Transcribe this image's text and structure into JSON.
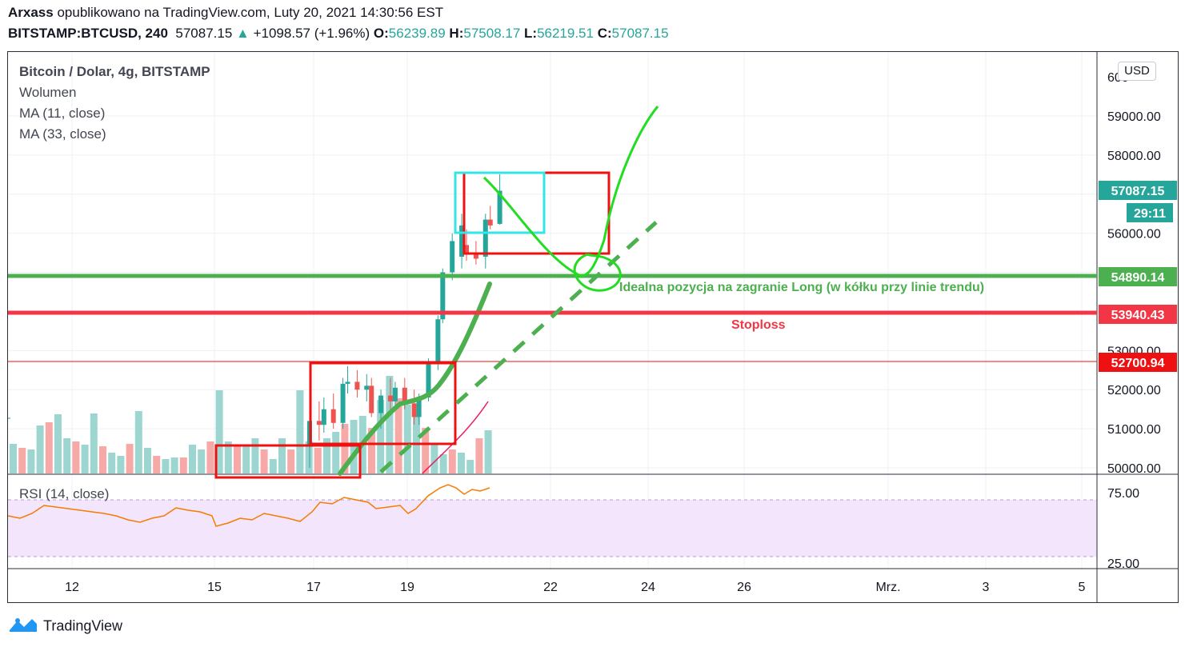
{
  "header": {
    "author": "Arxass",
    "published_text": "opublikowano na TradingView.com, Luty 20, 2021 14:30:56 EST",
    "symbol": "BITSTAMP:BTCUSD, 240",
    "price": "57087.15",
    "change": "+1098.57 (+1.96%)",
    "o_label": "O:",
    "o_value": "56239.89",
    "h_label": "H:",
    "h_value": "57508.17",
    "l_label": "L:",
    "l_value": "56219.51",
    "c_label": "C:",
    "c_value": "57087.15"
  },
  "legend": {
    "title": "Bitcoin / Dolar, 4g, BITSTAMP",
    "volume": "Wolumen",
    "ma11": "MA (11, close)",
    "ma33": "MA (33, close)",
    "rsi": "RSI (14, close)"
  },
  "currency_button": "USD",
  "footer": {
    "brand": "TradingView"
  },
  "colors": {
    "up": "#26a69a",
    "down": "#ef5350",
    "support": "#4caf50",
    "stoploss": "#f23645",
    "drawing_green": "#22dd22",
    "drawing_cyan": "#33e5e5",
    "drawing_red": "#ee1111",
    "rsi_line": "#f57c00",
    "rsi_band": "#f3e5fb"
  },
  "chart_data": {
    "type": "candlestick",
    "y_axis_ticks": [
      "59000.00",
      "58000.00",
      "57000.00",
      "56000.00",
      "55000.00",
      "54000.00",
      "53000.00",
      "52000.00",
      "51000.00",
      "50000.00"
    ],
    "y_axis_partial_top": "600",
    "x_axis_ticks": [
      "12",
      "15",
      "17",
      "19",
      "22",
      "24",
      "26",
      "Mrz.",
      "3",
      "5"
    ],
    "price_labels": [
      {
        "value": "57087.15",
        "color": "#26a69a"
      },
      {
        "value": "29:11",
        "color": "#26a69a"
      },
      {
        "value": "54890.14",
        "color": "#4caf50"
      },
      {
        "value": "53940.43",
        "color": "#f23645"
      },
      {
        "value": "52700.94",
        "color": "#ee1111"
      }
    ],
    "horizontal_lines": [
      {
        "price": 54890.14,
        "color": "#4caf50",
        "label": "Idealna pozycja na zagranie Long (w kółku przy linie trendu)"
      },
      {
        "price": 53940.43,
        "color": "#f23645",
        "label": "Stoploss"
      },
      {
        "price": 52700.94,
        "color": "#ee1111",
        "label": ""
      }
    ],
    "candles": [
      {
        "x": "17.0",
        "o": 50600,
        "h": 51400,
        "l": 50000,
        "c": 51200
      },
      {
        "x": "17.2",
        "o": 51200,
        "h": 51700,
        "l": 50700,
        "c": 51100
      },
      {
        "x": "17.3",
        "o": 51100,
        "h": 51800,
        "l": 50900,
        "c": 51500
      },
      {
        "x": "17.5",
        "o": 51500,
        "h": 51900,
        "l": 51000,
        "c": 51150
      },
      {
        "x": "17.7",
        "o": 51150,
        "h": 52300,
        "l": 51000,
        "c": 52150
      },
      {
        "x": "17.8",
        "o": 52150,
        "h": 52600,
        "l": 51900,
        "c": 52200
      },
      {
        "x": "18.0",
        "o": 52200,
        "h": 52500,
        "l": 51800,
        "c": 52000
      },
      {
        "x": "18.2",
        "o": 52000,
        "h": 52400,
        "l": 51700,
        "c": 52100
      },
      {
        "x": "18.3",
        "o": 52100,
        "h": 52300,
        "l": 51300,
        "c": 51400
      },
      {
        "x": "18.5",
        "o": 51400,
        "h": 52000,
        "l": 51000,
        "c": 51850
      },
      {
        "x": "18.7",
        "o": 51850,
        "h": 52300,
        "l": 51400,
        "c": 51700
      },
      {
        "x": "18.8",
        "o": 51700,
        "h": 52200,
        "l": 51500,
        "c": 52050
      },
      {
        "x": "19.0",
        "o": 52050,
        "h": 52300,
        "l": 51500,
        "c": 51650
      },
      {
        "x": "19.2",
        "o": 51650,
        "h": 52000,
        "l": 51100,
        "c": 51300
      },
      {
        "x": "19.3",
        "o": 51300,
        "h": 51900,
        "l": 51100,
        "c": 51800
      },
      {
        "x": "19.5",
        "o": 51800,
        "h": 52800,
        "l": 51700,
        "c": 52700
      },
      {
        "x": "19.7",
        "o": 52700,
        "h": 53900,
        "l": 52500,
        "c": 53800
      },
      {
        "x": "19.8",
        "o": 53800,
        "h": 55100,
        "l": 53700,
        "c": 55000
      },
      {
        "x": "20.0",
        "o": 55000,
        "h": 56000,
        "l": 54800,
        "c": 55800
      },
      {
        "x": "20.2",
        "o": 55400,
        "h": 56500,
        "l": 55100,
        "c": 56200
      },
      {
        "x": "20.3",
        "o": 55700,
        "h": 56100,
        "l": 55300,
        "c": 55500
      },
      {
        "x": "20.5",
        "o": 55500,
        "h": 55800,
        "l": 55200,
        "c": 55350
      },
      {
        "x": "20.7",
        "o": 55400,
        "h": 56500,
        "l": 55100,
        "c": 56350
      },
      {
        "x": "20.8",
        "o": 56350,
        "h": 56700,
        "l": 56100,
        "c": 56200
      },
      {
        "x": "21.0",
        "o": 56239.89,
        "h": 57508.17,
        "l": 56219.51,
        "c": 57087.15
      }
    ],
    "rsi_levels": [
      "75.00",
      "25.00"
    ]
  }
}
